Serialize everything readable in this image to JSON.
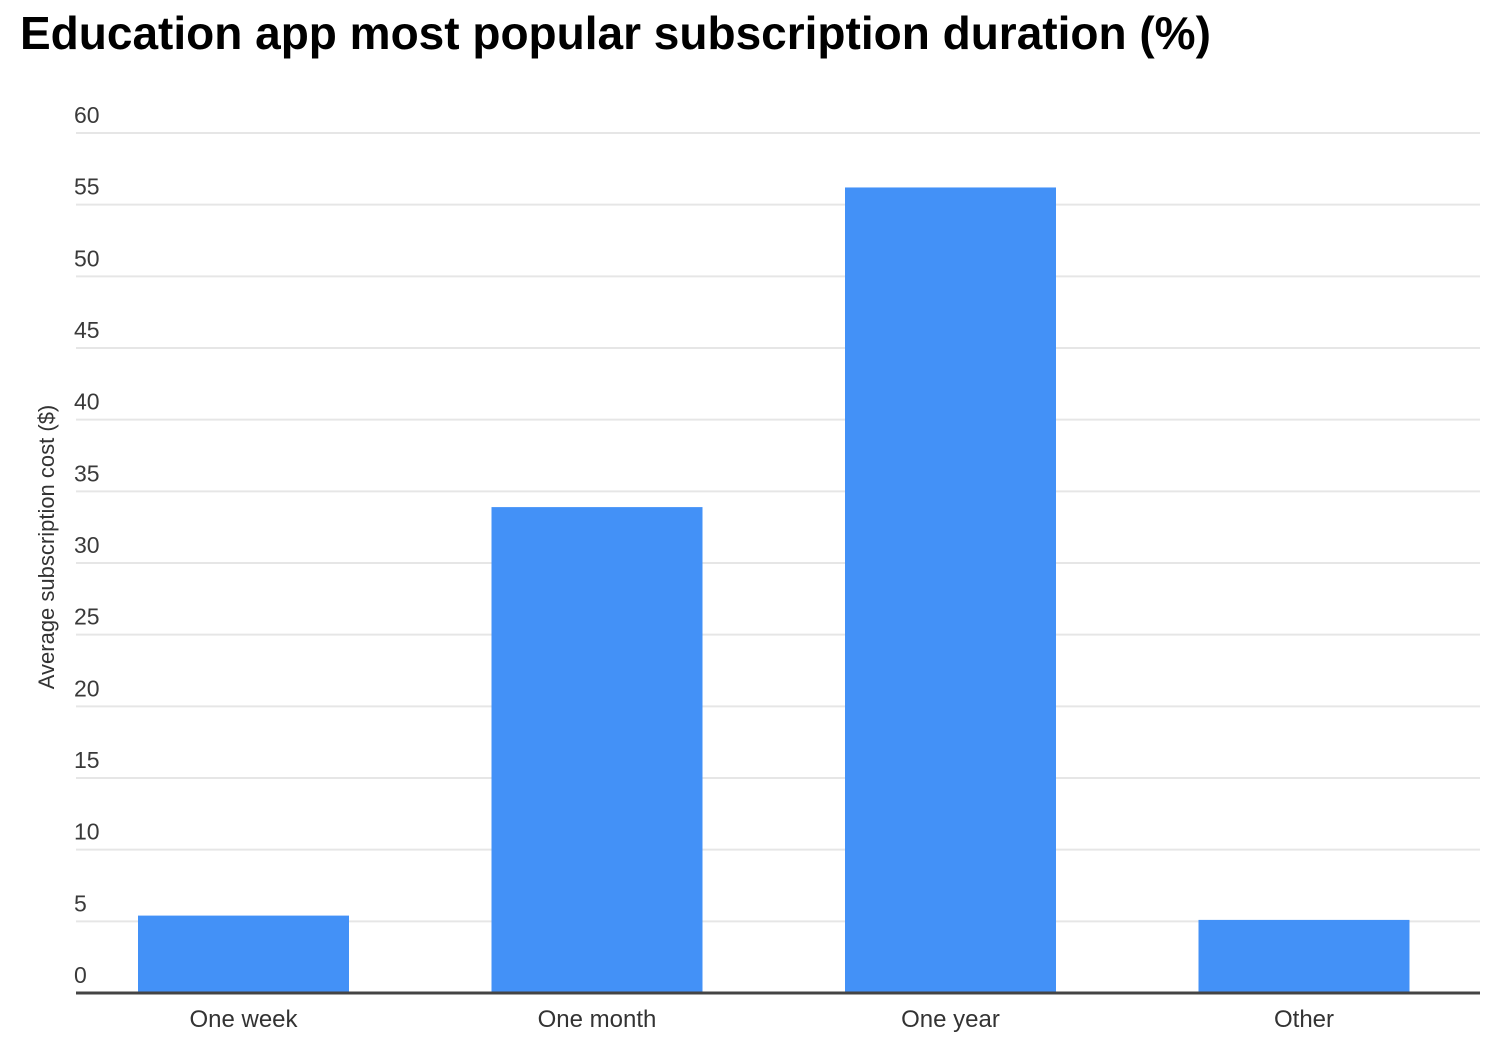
{
  "chart_data": {
    "type": "bar",
    "title": "Education app most popular subscription duration (%)",
    "xlabel": "",
    "ylabel": "Average subscription cost ($)",
    "categories": [
      "One week",
      "One month",
      "One year",
      "Other"
    ],
    "values": [
      5.4,
      33.9,
      56.2,
      5.1
    ],
    "ylim": [
      0,
      60
    ],
    "yticks": [
      0,
      5,
      10,
      15,
      20,
      25,
      30,
      35,
      40,
      45,
      50,
      55,
      60
    ],
    "grid": true,
    "colors": {
      "bar": "#4391f7",
      "grid": "#e6e6e6",
      "axis": "#444444"
    }
  }
}
